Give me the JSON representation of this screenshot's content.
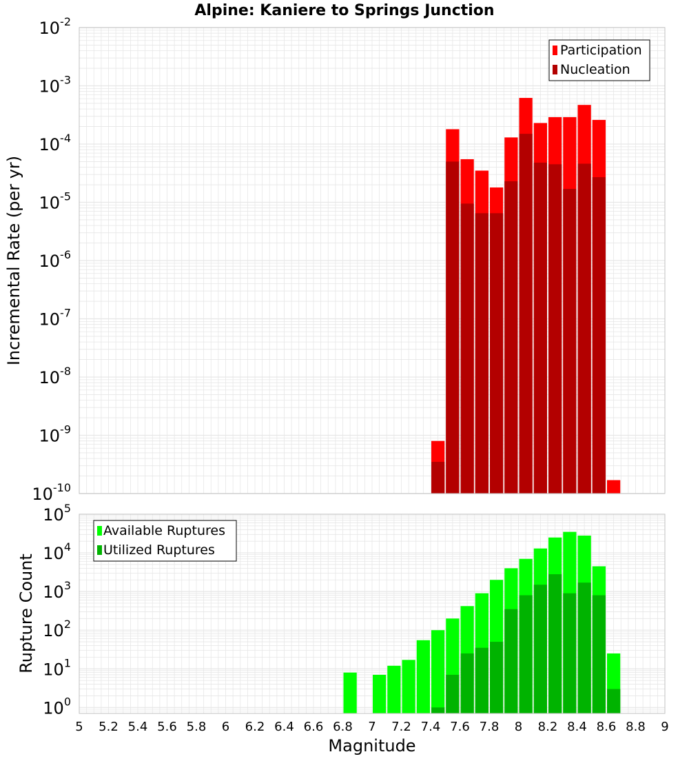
{
  "chart_data": {
    "title": "Alpine: Kaniere to Springs Junction",
    "xlabel": "Magnitude",
    "xlim": [
      5,
      9
    ],
    "xticks": [
      "5",
      "5.2",
      "5.4",
      "5.6",
      "5.8",
      "6",
      "6.2",
      "6.4",
      "6.6",
      "6.8",
      "7",
      "7.2",
      "7.4",
      "7.6",
      "7.8",
      "8",
      "8.2",
      "8.4",
      "8.6",
      "8.8",
      "9"
    ],
    "bin_width": 0.1,
    "colors": {
      "participation": "#ff0000",
      "nucleation": "#b30000",
      "available": "#00ff00",
      "utilized": "#00b300",
      "grid": "#e6e6e6",
      "axis": "#c0c0c0"
    },
    "panels": [
      {
        "type": "bar",
        "ylabel": "Incremental Rate (per yr)",
        "yscale": "log",
        "ylim": [
          1e-10,
          0.01
        ],
        "ytick_exponents": [
          "-10",
          "-9",
          "-8",
          "-7",
          "-6",
          "-5",
          "-4",
          "-3",
          "-2"
        ],
        "legend_position": "top-right",
        "series": [
          {
            "name": "Participation",
            "x": [
              7.45,
              7.55,
              7.65,
              7.75,
              7.85,
              7.95,
              8.05,
              8.15,
              8.25,
              8.35,
              8.45,
              8.55,
              8.65
            ],
            "values": [
              8e-10,
              0.00018,
              5.5e-05,
              3.5e-05,
              1.8e-05,
              0.00013,
              0.00062,
              0.00023,
              0.00029,
              0.00029,
              0.00047,
              0.00026,
              1.7e-10
            ]
          },
          {
            "name": "Nucleation",
            "x": [
              7.45,
              7.55,
              7.65,
              7.75,
              7.85,
              7.95,
              8.05,
              8.15,
              8.25,
              8.35,
              8.45,
              8.55
            ],
            "values": [
              3.5e-10,
              5e-05,
              9.5e-06,
              6.5e-06,
              6.5e-06,
              2.3e-05,
              0.00015,
              4.8e-05,
              4.5e-05,
              1.7e-05,
              4.6e-05,
              2.7e-05
            ]
          }
        ]
      },
      {
        "type": "bar",
        "ylabel": "Rupture Count",
        "yscale": "log",
        "ylim": [
          0.7,
          100000
        ],
        "ytick_exponents": [
          "0",
          "1",
          "2",
          "3",
          "4",
          "5"
        ],
        "legend_position": "top-left",
        "series": [
          {
            "name": "Available Ruptures",
            "x": [
              6.85,
              7.05,
              7.15,
              7.25,
              7.35,
              7.45,
              7.55,
              7.65,
              7.75,
              7.85,
              7.95,
              8.05,
              8.15,
              8.25,
              8.35,
              8.45,
              8.55,
              8.65
            ],
            "values": [
              8,
              7,
              12,
              17,
              55,
              100,
              200,
              420,
              900,
              2000,
              4000,
              7000,
              13000,
              25000,
              35000,
              28000,
              4500,
              25
            ]
          },
          {
            "name": "Utilized Ruptures",
            "x": [
              7.45,
              7.55,
              7.65,
              7.75,
              7.85,
              7.95,
              8.05,
              8.15,
              8.25,
              8.35,
              8.45,
              8.55,
              8.65
            ],
            "values": [
              1,
              7,
              25,
              35,
              50,
              350,
              800,
              1500,
              2800,
              900,
              1700,
              800,
              3
            ]
          }
        ]
      }
    ]
  }
}
